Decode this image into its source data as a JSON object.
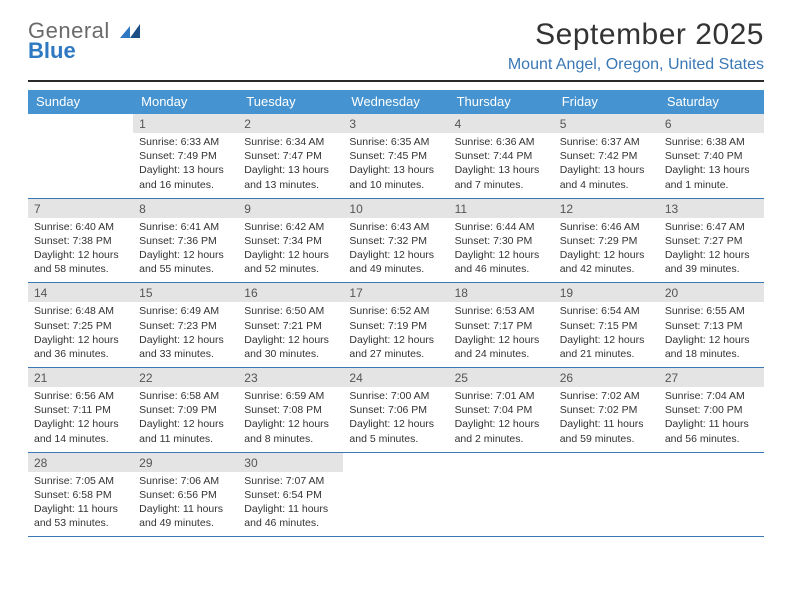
{
  "logo": {
    "line1": "General",
    "line2": "Blue",
    "line1_color": "#6a6a6a",
    "line2_color": "#2f79c2"
  },
  "title": "September 2025",
  "location": "Mount Angel, Oregon, United States",
  "accent_color": "#4593d0",
  "rule_color": "#3a78b5",
  "header_text_color": "#ffffff",
  "daynum_bg": "#e4e4e4",
  "weekdays": [
    "Sunday",
    "Monday",
    "Tuesday",
    "Wednesday",
    "Thursday",
    "Friday",
    "Saturday"
  ],
  "first_weekday_index": 1,
  "days_in_month": 30,
  "days": {
    "1": {
      "sunrise": "6:33 AM",
      "sunset": "7:49 PM",
      "daylight": "13 hours and 16 minutes."
    },
    "2": {
      "sunrise": "6:34 AM",
      "sunset": "7:47 PM",
      "daylight": "13 hours and 13 minutes."
    },
    "3": {
      "sunrise": "6:35 AM",
      "sunset": "7:45 PM",
      "daylight": "13 hours and 10 minutes."
    },
    "4": {
      "sunrise": "6:36 AM",
      "sunset": "7:44 PM",
      "daylight": "13 hours and 7 minutes."
    },
    "5": {
      "sunrise": "6:37 AM",
      "sunset": "7:42 PM",
      "daylight": "13 hours and 4 minutes."
    },
    "6": {
      "sunrise": "6:38 AM",
      "sunset": "7:40 PM",
      "daylight": "13 hours and 1 minute."
    },
    "7": {
      "sunrise": "6:40 AM",
      "sunset": "7:38 PM",
      "daylight": "12 hours and 58 minutes."
    },
    "8": {
      "sunrise": "6:41 AM",
      "sunset": "7:36 PM",
      "daylight": "12 hours and 55 minutes."
    },
    "9": {
      "sunrise": "6:42 AM",
      "sunset": "7:34 PM",
      "daylight": "12 hours and 52 minutes."
    },
    "10": {
      "sunrise": "6:43 AM",
      "sunset": "7:32 PM",
      "daylight": "12 hours and 49 minutes."
    },
    "11": {
      "sunrise": "6:44 AM",
      "sunset": "7:30 PM",
      "daylight": "12 hours and 46 minutes."
    },
    "12": {
      "sunrise": "6:46 AM",
      "sunset": "7:29 PM",
      "daylight": "12 hours and 42 minutes."
    },
    "13": {
      "sunrise": "6:47 AM",
      "sunset": "7:27 PM",
      "daylight": "12 hours and 39 minutes."
    },
    "14": {
      "sunrise": "6:48 AM",
      "sunset": "7:25 PM",
      "daylight": "12 hours and 36 minutes."
    },
    "15": {
      "sunrise": "6:49 AM",
      "sunset": "7:23 PM",
      "daylight": "12 hours and 33 minutes."
    },
    "16": {
      "sunrise": "6:50 AM",
      "sunset": "7:21 PM",
      "daylight": "12 hours and 30 minutes."
    },
    "17": {
      "sunrise": "6:52 AM",
      "sunset": "7:19 PM",
      "daylight": "12 hours and 27 minutes."
    },
    "18": {
      "sunrise": "6:53 AM",
      "sunset": "7:17 PM",
      "daylight": "12 hours and 24 minutes."
    },
    "19": {
      "sunrise": "6:54 AM",
      "sunset": "7:15 PM",
      "daylight": "12 hours and 21 minutes."
    },
    "20": {
      "sunrise": "6:55 AM",
      "sunset": "7:13 PM",
      "daylight": "12 hours and 18 minutes."
    },
    "21": {
      "sunrise": "6:56 AM",
      "sunset": "7:11 PM",
      "daylight": "12 hours and 14 minutes."
    },
    "22": {
      "sunrise": "6:58 AM",
      "sunset": "7:09 PM",
      "daylight": "12 hours and 11 minutes."
    },
    "23": {
      "sunrise": "6:59 AM",
      "sunset": "7:08 PM",
      "daylight": "12 hours and 8 minutes."
    },
    "24": {
      "sunrise": "7:00 AM",
      "sunset": "7:06 PM",
      "daylight": "12 hours and 5 minutes."
    },
    "25": {
      "sunrise": "7:01 AM",
      "sunset": "7:04 PM",
      "daylight": "12 hours and 2 minutes."
    },
    "26": {
      "sunrise": "7:02 AM",
      "sunset": "7:02 PM",
      "daylight": "11 hours and 59 minutes."
    },
    "27": {
      "sunrise": "7:04 AM",
      "sunset": "7:00 PM",
      "daylight": "11 hours and 56 minutes."
    },
    "28": {
      "sunrise": "7:05 AM",
      "sunset": "6:58 PM",
      "daylight": "11 hours and 53 minutes."
    },
    "29": {
      "sunrise": "7:06 AM",
      "sunset": "6:56 PM",
      "daylight": "11 hours and 49 minutes."
    },
    "30": {
      "sunrise": "7:07 AM",
      "sunset": "6:54 PM",
      "daylight": "11 hours and 46 minutes."
    }
  },
  "labels": {
    "sunrise": "Sunrise:",
    "sunset": "Sunset:",
    "daylight": "Daylight:"
  }
}
